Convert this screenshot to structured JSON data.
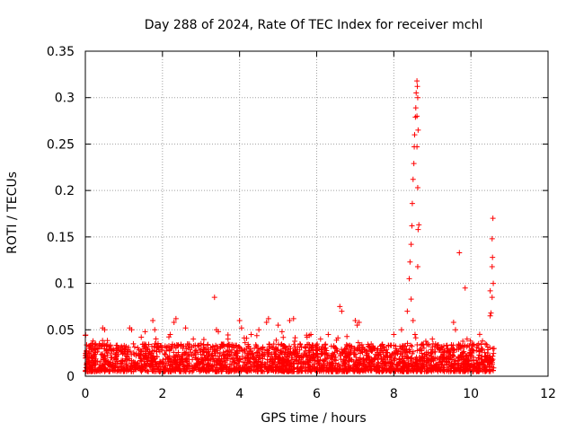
{
  "chart_data": {
    "type": "scatter",
    "title": "Day 288 of 2024, Rate Of TEC Index for receiver mchl",
    "xlabel": "GPS time / hours",
    "ylabel": "ROTI / TECUs",
    "xlim": [
      0,
      12
    ],
    "ylim": [
      0,
      0.35
    ],
    "xticks": [
      0,
      2,
      4,
      6,
      8,
      10,
      12
    ],
    "yticks": [
      0,
      0.05,
      0.1,
      0.15,
      0.2,
      0.25,
      0.3,
      0.35
    ],
    "xtick_labels": [
      "0",
      "2",
      "4",
      "6",
      "8",
      "10",
      "12"
    ],
    "ytick_labels": [
      "0",
      "0.05",
      "0.1",
      "0.15",
      "0.2",
      "0.25",
      "0.3",
      "0.35"
    ],
    "grid": true,
    "marker": "+",
    "color": "#ff0000",
    "dense_band": {
      "x_range": [
        0,
        10.6
      ],
      "typical_y_range": [
        0.005,
        0.035
      ],
      "note": "dense cloud of points between 0 and 10.6 hours"
    },
    "series": [
      {
        "name": "ROTI",
        "points": [
          [
            0.0,
            0.044
          ],
          [
            0.05,
            0.02
          ],
          [
            0.1,
            0.03
          ],
          [
            0.2,
            0.038
          ],
          [
            0.45,
            0.052
          ],
          [
            0.5,
            0.05
          ],
          [
            0.8,
            0.03
          ],
          [
            1.15,
            0.052
          ],
          [
            1.2,
            0.05
          ],
          [
            1.45,
            0.042
          ],
          [
            1.55,
            0.048
          ],
          [
            1.75,
            0.06
          ],
          [
            1.8,
            0.05
          ],
          [
            2.2,
            0.045
          ],
          [
            2.3,
            0.058
          ],
          [
            2.35,
            0.062
          ],
          [
            2.6,
            0.052
          ],
          [
            2.8,
            0.04
          ],
          [
            3.0,
            0.035
          ],
          [
            3.35,
            0.085
          ],
          [
            3.4,
            0.05
          ],
          [
            3.45,
            0.048
          ],
          [
            3.7,
            0.04
          ],
          [
            4.0,
            0.06
          ],
          [
            4.05,
            0.052
          ],
          [
            4.3,
            0.045
          ],
          [
            4.5,
            0.05
          ],
          [
            4.7,
            0.058
          ],
          [
            4.75,
            0.062
          ],
          [
            5.0,
            0.055
          ],
          [
            5.1,
            0.048
          ],
          [
            5.3,
            0.06
          ],
          [
            5.4,
            0.062
          ],
          [
            5.75,
            0.042
          ],
          [
            5.85,
            0.045
          ],
          [
            6.1,
            0.04
          ],
          [
            6.3,
            0.045
          ],
          [
            6.6,
            0.075
          ],
          [
            6.65,
            0.07
          ],
          [
            7.0,
            0.06
          ],
          [
            7.05,
            0.055
          ],
          [
            7.1,
            0.058
          ],
          [
            7.5,
            0.02
          ],
          [
            7.9,
            0.015
          ],
          [
            8.0,
            0.045
          ],
          [
            8.2,
            0.05
          ],
          [
            8.35,
            0.07
          ],
          [
            8.4,
            0.105
          ],
          [
            8.42,
            0.123
          ],
          [
            8.45,
            0.142
          ],
          [
            8.47,
            0.162
          ],
          [
            8.48,
            0.186
          ],
          [
            8.5,
            0.212
          ],
          [
            8.52,
            0.229
          ],
          [
            8.53,
            0.247
          ],
          [
            8.54,
            0.26
          ],
          [
            8.56,
            0.279
          ],
          [
            8.57,
            0.289
          ],
          [
            8.58,
            0.305
          ],
          [
            8.6,
            0.318
          ],
          [
            8.61,
            0.312
          ],
          [
            8.62,
            0.3
          ],
          [
            8.6,
            0.28
          ],
          [
            8.63,
            0.265
          ],
          [
            8.6,
            0.247
          ],
          [
            8.62,
            0.203
          ],
          [
            8.65,
            0.163
          ],
          [
            8.63,
            0.158
          ],
          [
            8.62,
            0.118
          ],
          [
            8.45,
            0.083
          ],
          [
            8.5,
            0.06
          ],
          [
            8.55,
            0.045
          ],
          [
            9.0,
            0.04
          ],
          [
            9.4,
            0.03
          ],
          [
            9.55,
            0.058
          ],
          [
            9.6,
            0.05
          ],
          [
            9.7,
            0.133
          ],
          [
            9.85,
            0.095
          ],
          [
            9.9,
            0.04
          ],
          [
            10.2,
            0.035
          ],
          [
            10.3,
            0.038
          ],
          [
            10.5,
            0.065
          ],
          [
            10.52,
            0.068
          ],
          [
            10.5,
            0.092
          ],
          [
            10.55,
            0.085
          ],
          [
            10.55,
            0.118
          ],
          [
            10.56,
            0.128
          ],
          [
            10.55,
            0.148
          ],
          [
            10.57,
            0.17
          ],
          [
            10.58,
            0.1
          ]
        ]
      }
    ]
  }
}
